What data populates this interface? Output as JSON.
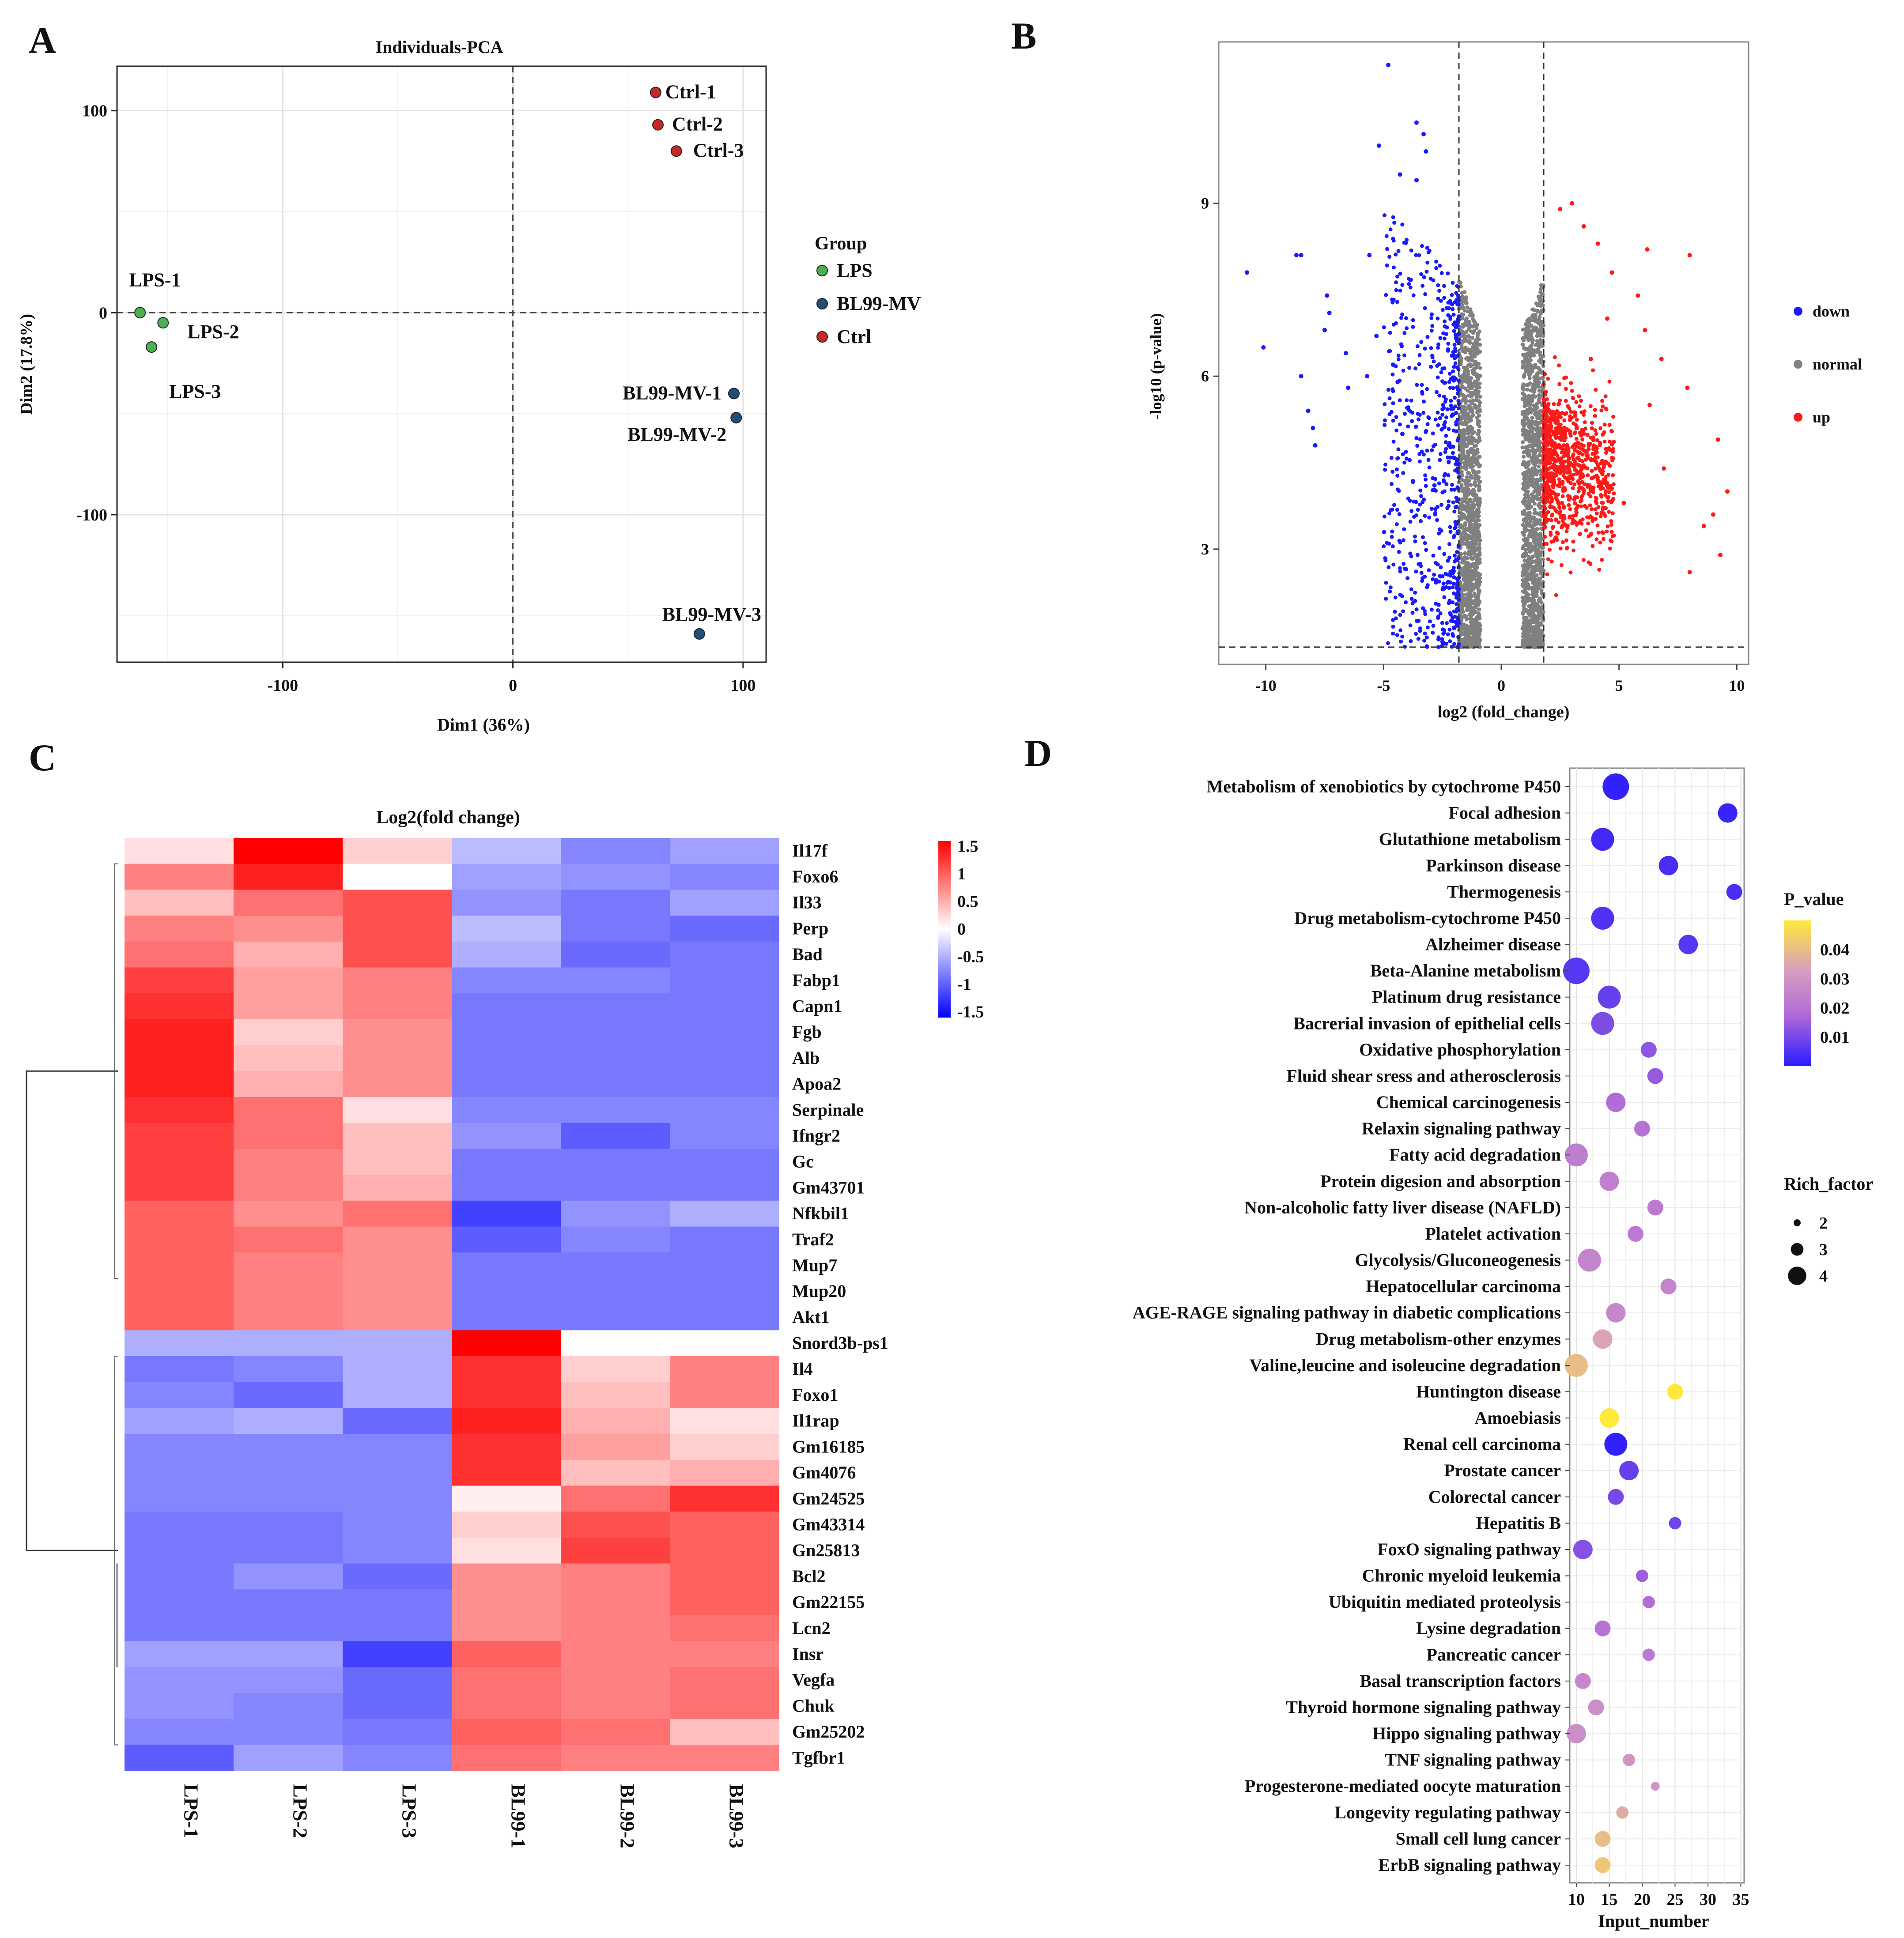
{
  "panel_letters": [
    "A",
    "B",
    "C",
    "D"
  ],
  "chart_data": [
    {
      "panel": "A",
      "type": "scatter",
      "title": "Individuals-PCA",
      "xlabel": "Dim1 (36%)",
      "ylabel": "Dim2 (17.8%)",
      "xlim": [
        -172,
        110
      ],
      "ylim": [
        -173,
        122
      ],
      "x_ticks": [
        -100,
        0,
        100
      ],
      "x_tick_labels": [
        "-100",
        "0",
        "100"
      ],
      "y_ticks": [
        100,
        0,
        -100
      ],
      "y_tick_labels": [
        "100",
        "0",
        "-100"
      ],
      "legend_title": "Group",
      "legend": [
        {
          "name": "LPS",
          "color": "#4caf50"
        },
        {
          "name": "BL99-MV",
          "color": "#1f4e79"
        },
        {
          "name": "Ctrl",
          "color": "#c62828"
        }
      ],
      "points": [
        {
          "label": "LPS-1",
          "group": "LPS",
          "x": -162,
          "y": 0
        },
        {
          "label": "LPS-2",
          "group": "LPS",
          "x": -152,
          "y": -5
        },
        {
          "label": "LPS-3",
          "group": "LPS",
          "x": -157,
          "y": -17
        },
        {
          "label": "Ctrl-1",
          "group": "Ctrl",
          "x": 62,
          "y": 109
        },
        {
          "label": "Ctrl-2",
          "group": "Ctrl",
          "x": 63,
          "y": 93
        },
        {
          "label": "Ctrl-3",
          "group": "Ctrl",
          "x": 71,
          "y": 80
        },
        {
          "label": "BL99-MV-1",
          "group": "BL99-MV",
          "x": 96,
          "y": -40
        },
        {
          "label": "BL99-MV-2",
          "group": "BL99-MV",
          "x": 97,
          "y": -52
        },
        {
          "label": "BL99-MV-3",
          "group": "BL99-MV",
          "x": 81,
          "y": -159
        }
      ]
    },
    {
      "panel": "B",
      "type": "scatter",
      "subtype": "volcano",
      "xlabel": "log2 (fold_change)",
      "ylabel": "-log10 (p-value)",
      "xlim": [
        -12,
        10.5
      ],
      "ylim": [
        1,
        11.8
      ],
      "x_ticks": [
        -10,
        -5,
        0,
        5,
        10
      ],
      "x_tick_labels": [
        "-10",
        "-5",
        "0",
        "5",
        "10"
      ],
      "y_ticks": [
        9,
        6,
        3
      ],
      "y_tick_labels": [
        "9",
        "6",
        "3"
      ],
      "fold_change_threshold": 1.8,
      "p_threshold_line": 1.3,
      "legend": [
        {
          "name": "down",
          "color": "#1a1aff"
        },
        {
          "name": "normal",
          "color": "#808080"
        },
        {
          "name": "up",
          "color": "#ff1a1a"
        }
      ],
      "cloud_point_counts": {
        "down": 650,
        "normal": 2600,
        "up": 900
      },
      "outliers_down": [
        [
          -4.8,
          11.4
        ],
        [
          -3.6,
          10.4
        ],
        [
          -3.3,
          10.2
        ],
        [
          -5.2,
          10.0
        ],
        [
          -3.2,
          9.9
        ],
        [
          -4.3,
          9.5
        ],
        [
          -3.6,
          9.4
        ],
        [
          -10.8,
          7.8
        ],
        [
          -8.7,
          8.1
        ],
        [
          -8.5,
          8.1
        ],
        [
          -7.4,
          7.4
        ],
        [
          -5.6,
          8.1
        ],
        [
          -10.1,
          6.5
        ],
        [
          -8.5,
          6.0
        ],
        [
          -7.5,
          6.8
        ],
        [
          -6.6,
          6.4
        ],
        [
          -6.5,
          5.8
        ],
        [
          -8.2,
          5.4
        ],
        [
          -8.0,
          5.1
        ],
        [
          -7.9,
          4.8
        ],
        [
          -7.3,
          7.1
        ],
        [
          -5.7,
          6.0
        ],
        [
          -5.3,
          6.7
        ],
        [
          -4.6,
          6.2
        ],
        [
          -4.2,
          5.0
        ],
        [
          -4.4,
          5.9
        ]
      ],
      "outliers_up": [
        [
          8.0,
          8.1
        ],
        [
          6.2,
          8.2
        ],
        [
          5.8,
          7.4
        ],
        [
          4.7,
          7.8
        ],
        [
          4.1,
          8.3
        ],
        [
          3.5,
          8.6
        ],
        [
          2.5,
          8.9
        ],
        [
          3.0,
          9.0
        ],
        [
          6.1,
          6.8
        ],
        [
          6.8,
          6.3
        ],
        [
          7.9,
          5.8
        ],
        [
          9.2,
          4.9
        ],
        [
          6.3,
          5.5
        ],
        [
          9.6,
          4.0
        ],
        [
          9.0,
          3.6
        ],
        [
          8.6,
          3.4
        ],
        [
          9.3,
          2.9
        ],
        [
          8.0,
          2.6
        ],
        [
          6.9,
          4.4
        ],
        [
          5.2,
          3.8
        ],
        [
          4.5,
          7.0
        ],
        [
          3.8,
          6.3
        ]
      ]
    },
    {
      "panel": "C",
      "type": "heatmap",
      "title": "Log2(fold change)",
      "columns": [
        "LPS-1",
        "LPS-2",
        "LPS-3",
        "BL99-1",
        "BL99-2",
        "BL99-3"
      ],
      "rows": [
        "Il17f",
        "Foxo6",
        "Il33",
        "Perp",
        "Bad",
        "Fabp1",
        "Capn1",
        "Fgb",
        "Alb",
        "Apoa2",
        "Serpinale",
        "Ifngr2",
        "Gc",
        "Gm43701",
        "Nfkbil1",
        "Traf2",
        "Mup7",
        "Mup20",
        "Akt1",
        "Snord3b-ps1",
        "Il4",
        "Foxo1",
        "Il1rap",
        "Gm16185",
        "Gm4076",
        "Gm24525",
        "Gm43314",
        "Gn25813",
        "Bcl2",
        "Gm22155",
        "Lcn2",
        "Insr",
        "Vegfa",
        "Chuk",
        "Gm25202",
        "Tgfbr1"
      ],
      "values": [
        [
          0.2,
          1.6,
          0.3,
          -0.5,
          -0.9,
          -0.7
        ],
        [
          0.8,
          1.4,
          0.0,
          -0.7,
          -0.8,
          -0.9
        ],
        [
          0.4,
          0.9,
          1.1,
          -0.8,
          -1.0,
          -0.7
        ],
        [
          0.8,
          0.7,
          1.1,
          -0.5,
          -1.0,
          -1.1
        ],
        [
          0.9,
          0.5,
          1.1,
          -0.6,
          -1.1,
          -1.0
        ],
        [
          1.2,
          0.6,
          0.8,
          -0.9,
          -0.9,
          -1.0
        ],
        [
          1.3,
          0.6,
          0.8,
          -1.0,
          -1.0,
          -1.0
        ],
        [
          1.4,
          0.3,
          0.7,
          -1.0,
          -1.0,
          -1.0
        ],
        [
          1.4,
          0.4,
          0.7,
          -1.0,
          -1.0,
          -1.0
        ],
        [
          1.4,
          0.5,
          0.7,
          -1.0,
          -1.0,
          -1.0
        ],
        [
          1.3,
          0.9,
          0.2,
          -0.9,
          -0.9,
          -0.9
        ],
        [
          1.2,
          0.9,
          0.4,
          -0.8,
          -1.2,
          -0.9
        ],
        [
          1.2,
          0.8,
          0.4,
          -1.0,
          -1.0,
          -1.0
        ],
        [
          1.2,
          0.8,
          0.5,
          -1.0,
          -1.0,
          -1.0
        ],
        [
          1.0,
          0.7,
          0.9,
          -1.4,
          -0.8,
          -0.6
        ],
        [
          1.0,
          0.9,
          0.7,
          -1.2,
          -0.9,
          -1.0
        ],
        [
          1.0,
          0.8,
          0.7,
          -1.0,
          -1.0,
          -1.0
        ],
        [
          1.0,
          0.8,
          0.7,
          -1.0,
          -1.0,
          -1.0
        ],
        [
          1.0,
          0.8,
          0.7,
          -1.0,
          -1.0,
          -1.0
        ],
        [
          -0.6,
          -0.6,
          -0.6,
          1.7,
          0.0,
          0.0
        ],
        [
          -1.0,
          -0.9,
          -0.6,
          1.3,
          0.3,
          0.8
        ],
        [
          -0.9,
          -1.1,
          -0.6,
          1.3,
          0.4,
          0.8
        ],
        [
          -0.7,
          -0.6,
          -1.1,
          1.4,
          0.5,
          0.2
        ],
        [
          -0.9,
          -0.9,
          -0.9,
          1.3,
          0.6,
          0.3
        ],
        [
          -0.9,
          -0.9,
          -0.9,
          1.3,
          0.4,
          0.5
        ],
        [
          -0.9,
          -0.9,
          -0.9,
          0.1,
          0.9,
          1.3
        ],
        [
          -1.0,
          -1.0,
          -0.9,
          0.3,
          1.1,
          1.0
        ],
        [
          -1.0,
          -1.0,
          -0.9,
          0.2,
          1.2,
          1.0
        ],
        [
          -1.0,
          -0.8,
          -1.1,
          0.7,
          0.8,
          1.0
        ],
        [
          -1.0,
          -1.0,
          -1.0,
          0.7,
          0.8,
          1.0
        ],
        [
          -1.0,
          -1.0,
          -1.0,
          0.7,
          0.8,
          0.9
        ],
        [
          -0.7,
          -0.7,
          -1.4,
          1.0,
          0.8,
          0.8
        ],
        [
          -0.8,
          -0.8,
          -1.1,
          0.9,
          0.8,
          0.9
        ],
        [
          -0.8,
          -0.9,
          -1.1,
          0.9,
          0.8,
          0.9
        ],
        [
          -0.9,
          -0.9,
          -1.0,
          1.0,
          0.9,
          0.4
        ],
        [
          -1.2,
          -0.7,
          -0.9,
          0.9,
          0.8,
          0.8
        ]
      ],
      "color_range": [
        -1.6,
        1.6
      ],
      "legend_ticks": [
        1.5,
        1,
        0.5,
        0,
        -0.5,
        -1,
        -1.5
      ],
      "legend_tick_labels": [
        "1.5",
        "1",
        "0.5",
        "0",
        "-0.5",
        "-1",
        "-1.5"
      ]
    },
    {
      "panel": "D",
      "type": "scatter",
      "subtype": "bubble",
      "xlabel": "Input_number",
      "xlim": [
        9,
        35.5
      ],
      "x_ticks": [
        10,
        15,
        20,
        25,
        30,
        35
      ],
      "x_tick_labels": [
        "10",
        "15",
        "20",
        "25",
        "30",
        "35"
      ],
      "color_legend_title": "P_value",
      "color_range": [
        0.0,
        0.05
      ],
      "color_ticks": [
        0.04,
        0.03,
        0.02,
        0.01
      ],
      "color_tick_labels": [
        "0.04",
        "0.03",
        "0.02",
        "0.01"
      ],
      "size_legend_title": "Rich_factor",
      "size_ticks": [
        2,
        3,
        4
      ],
      "size_tick_labels": [
        "2",
        "3",
        "4"
      ],
      "pathways": [
        {
          "name": "Metabolism of xenobiotics by cytochrome P450",
          "input_number": 16,
          "p_value": 0.001,
          "rich_factor": 4.5
        },
        {
          "name": "Focal adhesion",
          "input_number": 33,
          "p_value": 0.002,
          "rich_factor": 3.5
        },
        {
          "name": "Glutathione metabolism",
          "input_number": 14,
          "p_value": 0.003,
          "rich_factor": 4.0
        },
        {
          "name": "Parkinson disease",
          "input_number": 24,
          "p_value": 0.004,
          "rich_factor": 3.5
        },
        {
          "name": "Thermogenesis",
          "input_number": 34,
          "p_value": 0.004,
          "rich_factor": 3.0
        },
        {
          "name": "Drug metabolism-cytochrome P450",
          "input_number": 14,
          "p_value": 0.005,
          "rich_factor": 4.0
        },
        {
          "name": "Alzheimer disease",
          "input_number": 27,
          "p_value": 0.006,
          "rich_factor": 3.5
        },
        {
          "name": "Beta-Alanine metabolism",
          "input_number": 10,
          "p_value": 0.006,
          "rich_factor": 4.5
        },
        {
          "name": "Platinum drug resistance",
          "input_number": 15,
          "p_value": 0.008,
          "rich_factor": 4.0
        },
        {
          "name": "Bacrerial invasion of epithelial cells",
          "input_number": 14,
          "p_value": 0.011,
          "rich_factor": 4.0
        },
        {
          "name": "Oxidative phosphorylation",
          "input_number": 21,
          "p_value": 0.013,
          "rich_factor": 3.0
        },
        {
          "name": "Fluid shear sress and atherosclerosis",
          "input_number": 22,
          "p_value": 0.014,
          "rich_factor": 3.0
        },
        {
          "name": "Chemical carcinogenesis",
          "input_number": 16,
          "p_value": 0.018,
          "rich_factor": 3.5
        },
        {
          "name": "Relaxin signaling pathway",
          "input_number": 20,
          "p_value": 0.02,
          "rich_factor": 3.0
        },
        {
          "name": "Fatty acid degradation",
          "input_number": 10,
          "p_value": 0.023,
          "rich_factor": 4.0
        },
        {
          "name": "Protein digesion and absorption",
          "input_number": 15,
          "p_value": 0.024,
          "rich_factor": 3.5
        },
        {
          "name": "Non-alcoholic fatty liver disease (NAFLD)",
          "input_number": 22,
          "p_value": 0.022,
          "rich_factor": 3.0
        },
        {
          "name": "Platelet activation",
          "input_number": 19,
          "p_value": 0.022,
          "rich_factor": 3.0
        },
        {
          "name": "Glycolysis/Gluconeogenesis",
          "input_number": 12,
          "p_value": 0.025,
          "rich_factor": 4.0
        },
        {
          "name": "Hepatocellular carcinoma",
          "input_number": 24,
          "p_value": 0.025,
          "rich_factor": 3.0
        },
        {
          "name": "AGE-RAGE signaling pathway in diabetic complications",
          "input_number": 16,
          "p_value": 0.026,
          "rich_factor": 3.5
        },
        {
          "name": "Drug metabolism-other enzymes",
          "input_number": 14,
          "p_value": 0.034,
          "rich_factor": 3.5
        },
        {
          "name": "Valine,leucine and isoleucine degradation",
          "input_number": 10,
          "p_value": 0.04,
          "rich_factor": 4.0
        },
        {
          "name": "Huntington disease",
          "input_number": 25,
          "p_value": 0.05,
          "rich_factor": 3.0
        },
        {
          "name": "Amoebiasis",
          "input_number": 15,
          "p_value": 0.05,
          "rich_factor": 3.5
        },
        {
          "name": "Renal cell carcinoma",
          "input_number": 16,
          "p_value": 0.001,
          "rich_factor": 4.0
        },
        {
          "name": "Prostate cancer",
          "input_number": 18,
          "p_value": 0.008,
          "rich_factor": 3.5
        },
        {
          "name": "Colorectal cancer",
          "input_number": 16,
          "p_value": 0.01,
          "rich_factor": 3.0
        },
        {
          "name": "Hepatitis B",
          "input_number": 25,
          "p_value": 0.009,
          "rich_factor": 2.5
        },
        {
          "name": "FoxO signaling pathway",
          "input_number": 11,
          "p_value": 0.012,
          "rich_factor": 3.5
        },
        {
          "name": "Chronic myeloid leukemia",
          "input_number": 20,
          "p_value": 0.015,
          "rich_factor": 2.5
        },
        {
          "name": "Ubiquitin mediated proteolysis",
          "input_number": 21,
          "p_value": 0.018,
          "rich_factor": 2.5
        },
        {
          "name": "Lysine degradation",
          "input_number": 14,
          "p_value": 0.02,
          "rich_factor": 3.0
        },
        {
          "name": "Pancreatic cancer",
          "input_number": 21,
          "p_value": 0.022,
          "rich_factor": 2.5
        },
        {
          "name": "Basal transcription factors",
          "input_number": 11,
          "p_value": 0.026,
          "rich_factor": 3.0
        },
        {
          "name": "Thyroid hormone signaling pathway",
          "input_number": 13,
          "p_value": 0.028,
          "rich_factor": 3.0
        },
        {
          "name": "Hippo signaling pathway",
          "input_number": 10,
          "p_value": 0.028,
          "rich_factor": 3.5
        },
        {
          "name": "TNF signaling pathway",
          "input_number": 18,
          "p_value": 0.03,
          "rich_factor": 2.5
        },
        {
          "name": "Progesterone-mediated oocyte maturation",
          "input_number": 22,
          "p_value": 0.03,
          "rich_factor": 2.0
        },
        {
          "name": "Longevity regulating pathway",
          "input_number": 17,
          "p_value": 0.036,
          "rich_factor": 2.5
        },
        {
          "name": "Small cell lung cancer",
          "input_number": 14,
          "p_value": 0.04,
          "rich_factor": 3.0
        },
        {
          "name": "ErbB signaling pathway",
          "input_number": 14,
          "p_value": 0.042,
          "rich_factor": 3.0
        }
      ]
    }
  ]
}
